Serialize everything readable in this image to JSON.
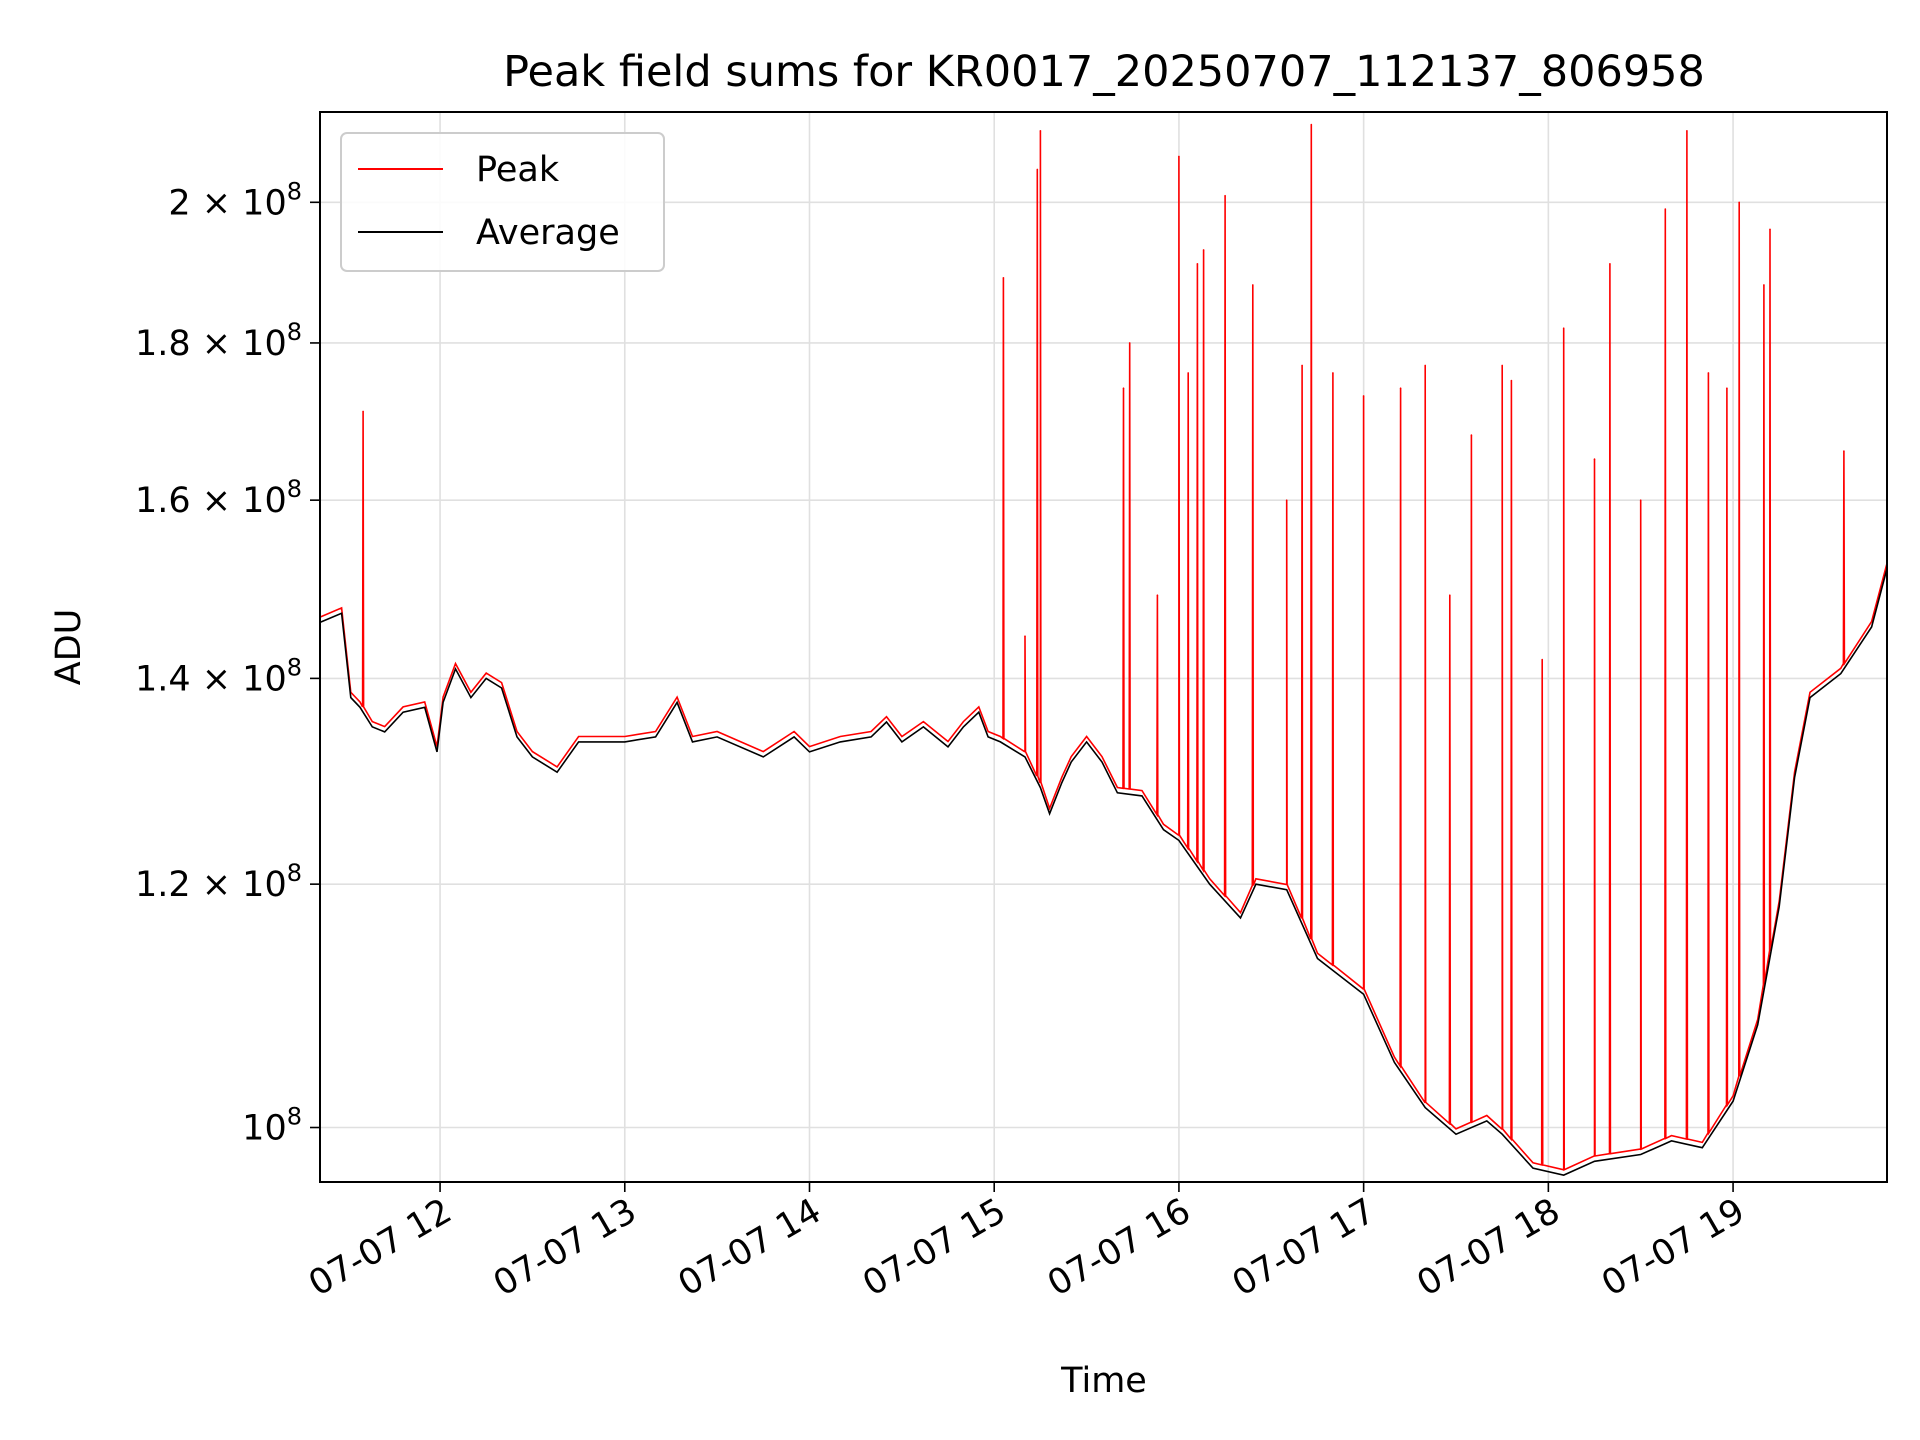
{
  "chart_data": {
    "type": "line",
    "title": "Peak field sums for KR0017_20250707_112137_806958",
    "xlabel": "Time",
    "ylabel": "ADU",
    "y_scale": "log",
    "ylim": [
      96000000,
      214000000
    ],
    "xlim": [
      "2025-07-07 11:21",
      "2025-07-07 19:50"
    ],
    "grid": true,
    "legend_position": "upper-left",
    "x_ticks": [
      {
        "t": "2025-07-07 12:00",
        "label": "07-07 12"
      },
      {
        "t": "2025-07-07 13:00",
        "label": "07-07 13"
      },
      {
        "t": "2025-07-07 14:00",
        "label": "07-07 14"
      },
      {
        "t": "2025-07-07 15:00",
        "label": "07-07 15"
      },
      {
        "t": "2025-07-07 16:00",
        "label": "07-07 16"
      },
      {
        "t": "2025-07-07 17:00",
        "label": "07-07 17"
      },
      {
        "t": "2025-07-07 18:00",
        "label": "07-07 18"
      },
      {
        "t": "2025-07-07 19:00",
        "label": "07-07 19"
      }
    ],
    "y_ticks": [
      {
        "value": 100000000,
        "base": "10",
        "exp": "8"
      },
      {
        "value": 120000000,
        "base": "1.2 × 10",
        "exp": "8"
      },
      {
        "value": 140000000,
        "base": "1.4 × 10",
        "exp": "8"
      },
      {
        "value": 160000000,
        "base": "1.6 × 10",
        "exp": "8"
      },
      {
        "value": 180000000,
        "base": "1.8 × 10",
        "exp": "8"
      },
      {
        "value": 200000000,
        "base": "2 × 10",
        "exp": "8"
      }
    ],
    "series": [
      {
        "name": "Average",
        "color": "#000000",
        "points": [
          [
            "2025-07-07 11:21",
            146000000
          ],
          [
            "2025-07-07 11:28",
            147000000
          ],
          [
            "2025-07-07 11:31",
            138000000
          ],
          [
            "2025-07-07 11:34",
            137000000
          ],
          [
            "2025-07-07 11:38",
            135000000
          ],
          [
            "2025-07-07 11:42",
            134500000
          ],
          [
            "2025-07-07 11:48",
            136500000
          ],
          [
            "2025-07-07 11:55",
            137000000
          ],
          [
            "2025-07-07 11:59",
            132500000
          ],
          [
            "2025-07-07 12:01",
            137500000
          ],
          [
            "2025-07-07 12:05",
            141000000
          ],
          [
            "2025-07-07 12:10",
            138000000
          ],
          [
            "2025-07-07 12:15",
            140000000
          ],
          [
            "2025-07-07 12:20",
            139000000
          ],
          [
            "2025-07-07 12:25",
            134000000
          ],
          [
            "2025-07-07 12:30",
            132000000
          ],
          [
            "2025-07-07 12:38",
            130500000
          ],
          [
            "2025-07-07 12:45",
            133500000
          ],
          [
            "2025-07-07 13:00",
            133500000
          ],
          [
            "2025-07-07 13:10",
            134000000
          ],
          [
            "2025-07-07 13:17",
            137500000
          ],
          [
            "2025-07-07 13:22",
            133500000
          ],
          [
            "2025-07-07 13:30",
            134000000
          ],
          [
            "2025-07-07 13:45",
            132000000
          ],
          [
            "2025-07-07 13:55",
            134000000
          ],
          [
            "2025-07-07 14:00",
            132500000
          ],
          [
            "2025-07-07 14:10",
            133500000
          ],
          [
            "2025-07-07 14:20",
            134000000
          ],
          [
            "2025-07-07 14:25",
            135500000
          ],
          [
            "2025-07-07 14:30",
            133500000
          ],
          [
            "2025-07-07 14:37",
            135000000
          ],
          [
            "2025-07-07 14:45",
            133000000
          ],
          [
            "2025-07-07 14:50",
            135000000
          ],
          [
            "2025-07-07 14:55",
            136500000
          ],
          [
            "2025-07-07 14:58",
            134000000
          ],
          [
            "2025-07-07 15:02",
            133500000
          ],
          [
            "2025-07-07 15:10",
            132000000
          ],
          [
            "2025-07-07 15:15",
            129000000
          ],
          [
            "2025-07-07 15:18",
            126500000
          ],
          [
            "2025-07-07 15:22",
            129500000
          ],
          [
            "2025-07-07 15:25",
            131500000
          ],
          [
            "2025-07-07 15:30",
            133500000
          ],
          [
            "2025-07-07 15:35",
            131500000
          ],
          [
            "2025-07-07 15:40",
            128500000
          ],
          [
            "2025-07-07 15:48",
            128200000
          ],
          [
            "2025-07-07 15:55",
            125000000
          ],
          [
            "2025-07-07 16:00",
            124000000
          ],
          [
            "2025-07-07 16:10",
            120000000
          ],
          [
            "2025-07-07 16:20",
            117000000
          ],
          [
            "2025-07-07 16:25",
            120000000
          ],
          [
            "2025-07-07 16:35",
            119500000
          ],
          [
            "2025-07-07 16:45",
            113500000
          ],
          [
            "2025-07-07 17:00",
            110500000
          ],
          [
            "2025-07-07 17:10",
            105000000
          ],
          [
            "2025-07-07 17:20",
            101500000
          ],
          [
            "2025-07-07 17:30",
            99500000
          ],
          [
            "2025-07-07 17:40",
            100500000
          ],
          [
            "2025-07-07 17:45",
            99500000
          ],
          [
            "2025-07-07 17:55",
            97000000
          ],
          [
            "2025-07-07 18:05",
            96500000
          ],
          [
            "2025-07-07 18:15",
            97500000
          ],
          [
            "2025-07-07 18:30",
            98000000
          ],
          [
            "2025-07-07 18:40",
            99000000
          ],
          [
            "2025-07-07 18:50",
            98500000
          ],
          [
            "2025-07-07 19:00",
            102000000
          ],
          [
            "2025-07-07 19:08",
            108000000
          ],
          [
            "2025-07-07 19:15",
            118000000
          ],
          [
            "2025-07-07 19:20",
            130000000
          ],
          [
            "2025-07-07 19:25",
            138000000
          ],
          [
            "2025-07-07 19:35",
            140500000
          ],
          [
            "2025-07-07 19:45",
            145500000
          ],
          [
            "2025-07-07 19:50",
            152000000
          ]
        ]
      },
      {
        "name": "Peak",
        "color": "#ff0000",
        "spikes": [
          [
            "2025-07-07 11:35",
            171000000
          ],
          [
            "2025-07-07 15:03",
            189000000
          ],
          [
            "2025-07-07 15:10",
            144500000
          ],
          [
            "2025-07-07 15:14",
            205000000
          ],
          [
            "2025-07-07 15:15",
            211000000
          ],
          [
            "2025-07-07 15:42",
            174000000
          ],
          [
            "2025-07-07 15:44",
            180000000
          ],
          [
            "2025-07-07 15:53",
            149000000
          ],
          [
            "2025-07-07 16:00",
            207000000
          ],
          [
            "2025-07-07 16:03",
            176000000
          ],
          [
            "2025-07-07 16:06",
            191000000
          ],
          [
            "2025-07-07 16:08",
            193000000
          ],
          [
            "2025-07-07 16:15",
            201000000
          ],
          [
            "2025-07-07 16:24",
            188000000
          ],
          [
            "2025-07-07 16:35",
            160000000
          ],
          [
            "2025-07-07 16:40",
            177000000
          ],
          [
            "2025-07-07 16:43",
            212000000
          ],
          [
            "2025-07-07 16:50",
            176000000
          ],
          [
            "2025-07-07 17:00",
            173000000
          ],
          [
            "2025-07-07 17:12",
            174000000
          ],
          [
            "2025-07-07 17:20",
            177000000
          ],
          [
            "2025-07-07 17:28",
            149000000
          ],
          [
            "2025-07-07 17:35",
            168000000
          ],
          [
            "2025-07-07 17:45",
            177000000
          ],
          [
            "2025-07-07 17:48",
            175000000
          ],
          [
            "2025-07-07 17:58",
            142000000
          ],
          [
            "2025-07-07 18:05",
            182000000
          ],
          [
            "2025-07-07 18:15",
            165000000
          ],
          [
            "2025-07-07 18:20",
            191000000
          ],
          [
            "2025-07-07 18:30",
            160000000
          ],
          [
            "2025-07-07 18:38",
            199000000
          ],
          [
            "2025-07-07 18:45",
            211000000
          ],
          [
            "2025-07-07 18:52",
            176000000
          ],
          [
            "2025-07-07 18:58",
            174000000
          ],
          [
            "2025-07-07 19:02",
            200000000
          ],
          [
            "2025-07-07 19:10",
            188000000
          ],
          [
            "2025-07-07 19:12",
            196000000
          ],
          [
            "2025-07-07 19:36",
            166000000
          ]
        ]
      }
    ]
  }
}
